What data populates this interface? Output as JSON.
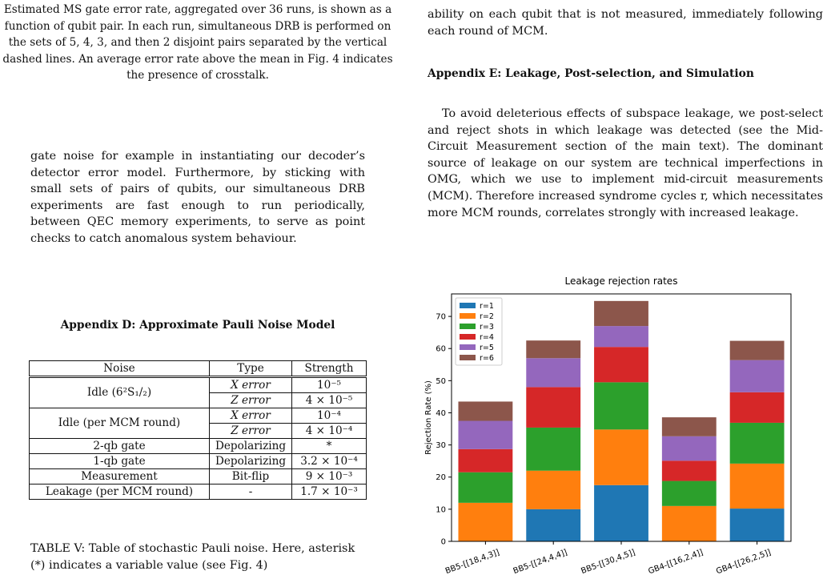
{
  "left": {
    "figure_caption": "Estimated MS gate error rate, aggregated over 36 runs, is shown as a function of qubit pair. In each run, simultaneous DRB is performed on the sets of 5, 4, 3, and then 2 disjoint pairs separated by the vertical dashed lines. An average error rate above the mean in Fig. 4 indicates the presence of crosstalk.",
    "paragraph": "gate noise for example in instantiating our decoder’s detector error model. Furthermore, by sticking with small sets of pairs of qubits, our simultaneous DRB experiments are fast enough to run periodically, between QEC memory experiments, to serve as point checks to catch anomalous system behaviour.",
    "appendix_d_title": "Appendix D: Approximate Pauli Noise Model",
    "table": {
      "headers": [
        "Noise",
        "Type",
        "Strength"
      ],
      "idle_ion": "Idle (6²S₁/₂)",
      "idle_ion_x_type": "X error",
      "idle_ion_x_strength": "10⁻⁵",
      "idle_ion_z_type": "Z error",
      "idle_ion_z_strength": "4 × 10⁻⁵",
      "idle_mcm": "Idle (per MCM round)",
      "idle_mcm_x_type": "X error",
      "idle_mcm_x_strength": "10⁻⁴",
      "idle_mcm_z_type": "Z error",
      "idle_mcm_z_strength": "4 × 10⁻⁴",
      "two_qb": "2-qb gate",
      "two_qb_type": "Depolarizing",
      "two_qb_strength": "*",
      "one_qb": "1-qb gate",
      "one_qb_type": "Depolarizing",
      "one_qb_strength": "3.2 × 10⁻⁴",
      "meas": "Measurement",
      "meas_type": "Bit-flip",
      "meas_strength": "9 × 10⁻³",
      "leak": "Leakage (per MCM round)",
      "leak_type": "-",
      "leak_strength": "1.7 × 10⁻³"
    },
    "table_caption": "TABLE V: Table of stochastic Pauli noise. Here, asterisk (*) indicates a variable value (see Fig. 4)"
  },
  "right": {
    "top_text": "ability on each qubit that is not measured, immediately following each round of MCM.",
    "appendix_e_title": "Appendix E: Leakage, Post-selection, and Simulation",
    "paragraph": "To avoid deleterious effects of subspace leakage, we post-select and reject shots in which leakage was detected (see the Mid-Circuit Measurement section of the main text). The dominant source of leakage on our system are technical imperfections in OMG, which we use to implement mid-circuit measurements (MCM). Therefore increased syndrome cycles r, which necessitates more MCM rounds, correlates strongly with increased leakage."
  },
  "chart_data": {
    "type": "bar",
    "stacked": true,
    "title": "Leakage rejection rates",
    "xlabel": "",
    "ylabel": "Rejection Rate (%)",
    "ylim": [
      0,
      77
    ],
    "yticks": [
      0,
      10,
      20,
      30,
      40,
      50,
      60,
      70
    ],
    "categories": [
      "BB5-[[18,4,3]]",
      "BB5-[[24,4,4]]",
      "BB5-[[30,4,5]]",
      "GB4-[[16,2,4]]",
      "GB4-[[26,2,5]]"
    ],
    "legend_position": "top-left",
    "grid": false,
    "series": [
      {
        "name": "r=1",
        "color": "#1f77b4",
        "values": [
          0,
          10.0,
          17.5,
          0,
          10.2
        ]
      },
      {
        "name": "r=2",
        "color": "#ff7f0e",
        "values": [
          12.0,
          12.0,
          17.3,
          11.0,
          14.0
        ]
      },
      {
        "name": "r=3",
        "color": "#2ca02c",
        "values": [
          9.5,
          13.4,
          14.7,
          7.8,
          12.7
        ]
      },
      {
        "name": "r=4",
        "color": "#d62728",
        "values": [
          7.2,
          12.6,
          11.0,
          6.3,
          9.5
        ]
      },
      {
        "name": "r=5",
        "color": "#9467bd",
        "values": [
          8.8,
          9.0,
          6.5,
          7.6,
          10.0
        ]
      },
      {
        "name": "r=6",
        "color": "#8c564b",
        "values": [
          6.0,
          5.5,
          7.8,
          5.9,
          6.0
        ]
      }
    ]
  }
}
